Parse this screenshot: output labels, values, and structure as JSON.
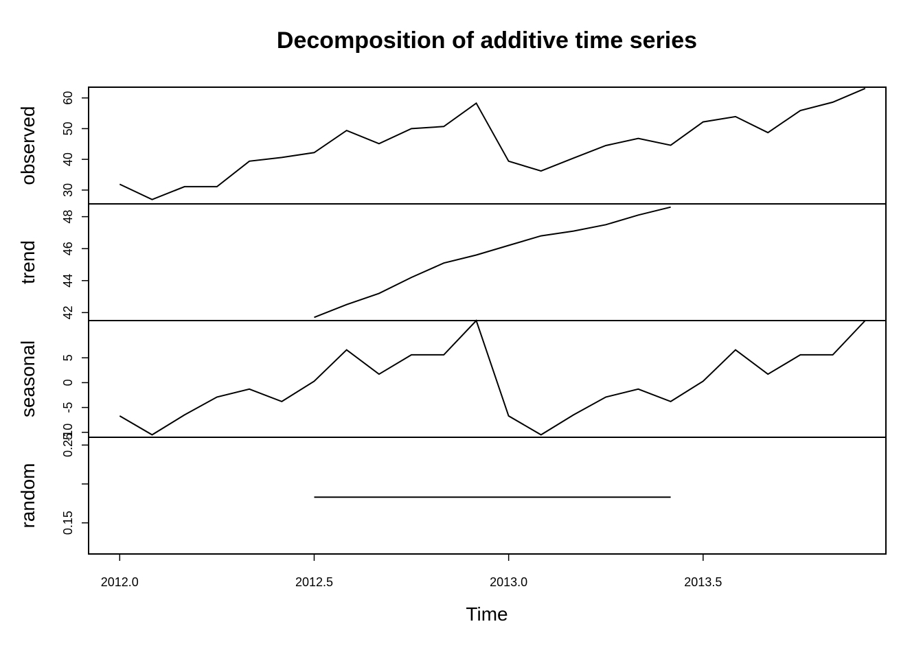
{
  "chart_data": {
    "type": "line",
    "title": "Decomposition of additive time series",
    "xlabel": "Time",
    "xlim": [
      2011.92,
      2013.97
    ],
    "x_ticks": [
      2012.0,
      2012.5,
      2013.0,
      2013.5
    ],
    "x_tick_labels": [
      "2012.0",
      "2012.5",
      "2013.0",
      "2013.5"
    ],
    "x": [
      2012.0,
      2012.0833,
      2012.1667,
      2012.25,
      2012.3333,
      2012.4167,
      2012.5,
      2012.5833,
      2012.6667,
      2012.75,
      2012.8333,
      2012.9167,
      2013.0,
      2013.0833,
      2013.1667,
      2013.25,
      2013.3333,
      2013.4167,
      2013.5,
      2013.5833,
      2013.6667,
      2013.75,
      2013.8333,
      2013.9167
    ],
    "panels": [
      {
        "name": "observed",
        "ylim": [
          25.5,
          63.5
        ],
        "y_ticks": [
          30,
          40,
          50,
          60
        ],
        "y_tick_labels": [
          "30",
          "40",
          "50",
          "60"
        ],
        "values": [
          31.9,
          26.9,
          31.1,
          31.1,
          39.4,
          40.6,
          42.2,
          49.4,
          45.1,
          50.0,
          50.7,
          58.3,
          39.4,
          36.2,
          40.4,
          44.5,
          46.8,
          44.6,
          52.2,
          53.9,
          48.7,
          55.9,
          58.6,
          63.1
        ]
      },
      {
        "name": "trend",
        "ylim": [
          41.5,
          48.8
        ],
        "y_ticks": [
          42,
          44,
          46,
          48
        ],
        "y_tick_labels": [
          "42",
          "44",
          "46",
          "48"
        ],
        "values": [
          null,
          null,
          null,
          null,
          null,
          null,
          41.7,
          42.5,
          43.2,
          44.2,
          45.1,
          45.6,
          46.2,
          46.8,
          47.1,
          47.5,
          48.1,
          48.6,
          null,
          null,
          null,
          null,
          null,
          null
        ]
      },
      {
        "name": "seasonal",
        "ylim": [
          -11.0,
          12.5
        ],
        "y_ticks": [
          -10,
          -5,
          0,
          5
        ],
        "y_tick_labels": [
          "-10",
          "-5",
          "0",
          "5"
        ],
        "values": [
          -6.7,
          -10.5,
          -6.5,
          -2.9,
          -1.3,
          -3.8,
          0.3,
          6.6,
          1.7,
          5.6,
          5.6,
          12.5,
          -6.7,
          -10.5,
          -6.5,
          -2.9,
          -1.3,
          -3.8,
          0.3,
          6.6,
          1.7,
          5.6,
          5.6,
          12.5
        ]
      },
      {
        "name": "random",
        "ylim": [
          0.11,
          0.26
        ],
        "y_ticks": [
          0.15,
          0.2,
          0.25
        ],
        "y_tick_labels": [
          "0.15",
          "",
          "0.25"
        ],
        "values": [
          null,
          null,
          null,
          null,
          null,
          null,
          0.183,
          0.183,
          0.183,
          0.183,
          0.183,
          0.183,
          0.183,
          0.183,
          0.183,
          0.183,
          0.183,
          0.183,
          null,
          null,
          null,
          null,
          null,
          null
        ]
      }
    ]
  }
}
